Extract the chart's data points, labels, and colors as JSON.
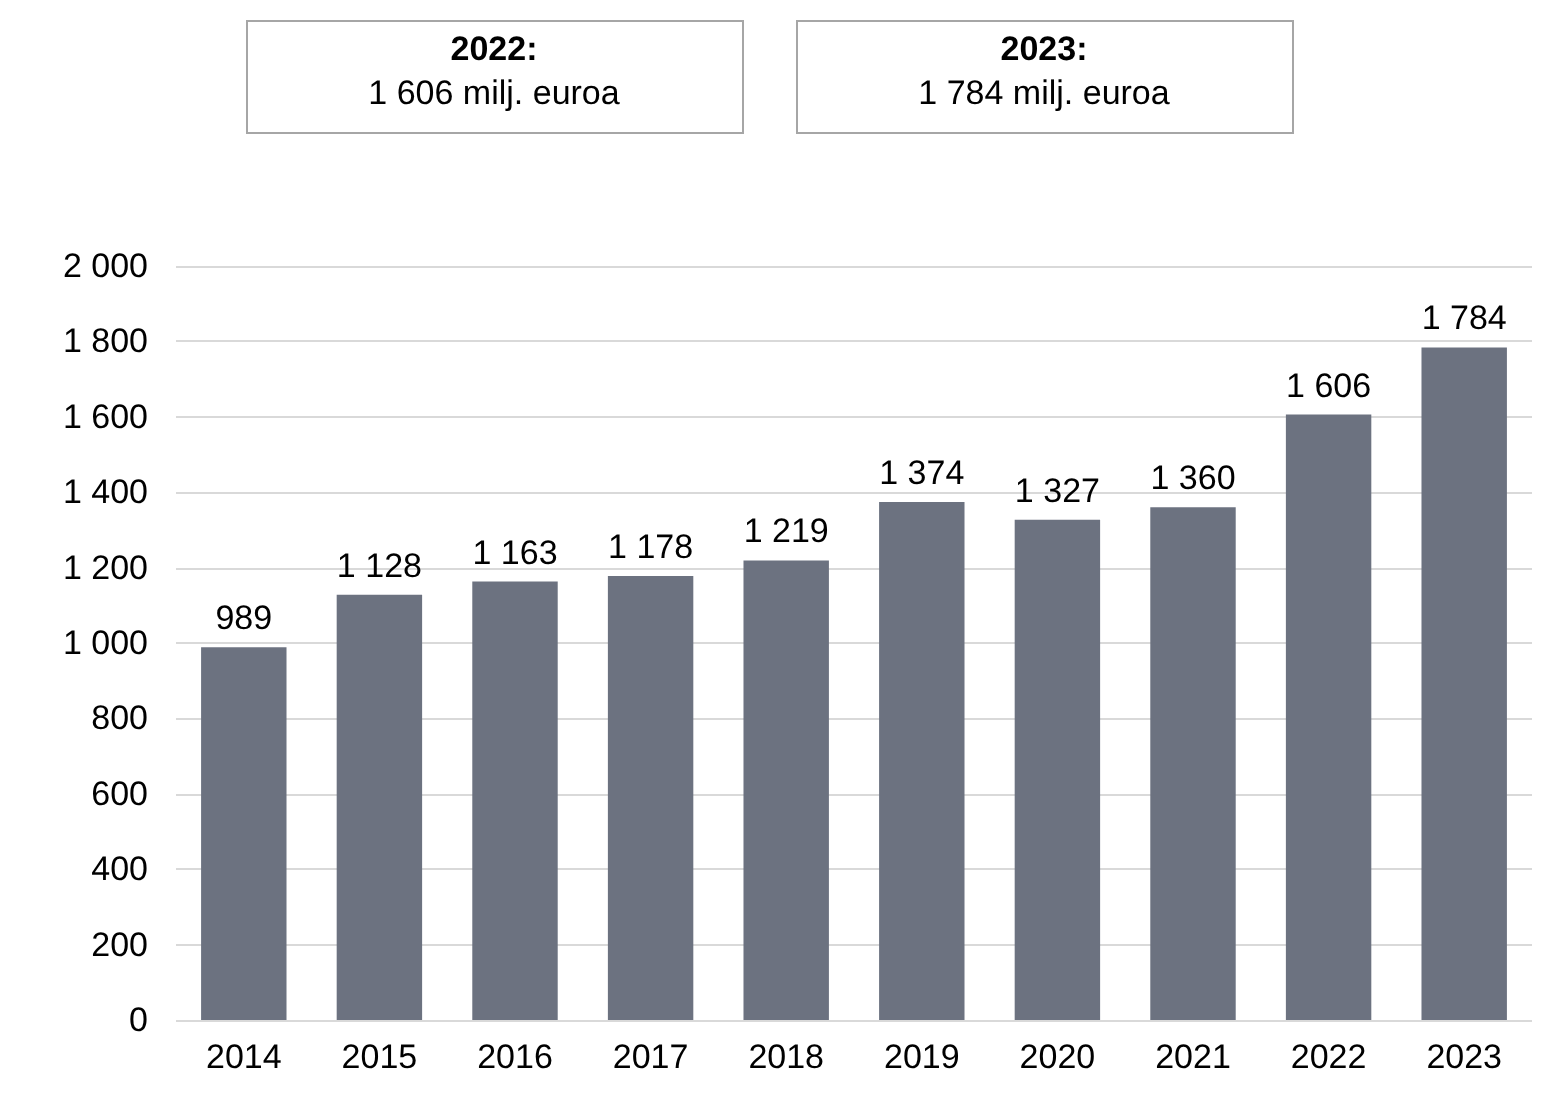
{
  "chart_data": {
    "type": "bar",
    "annotations": [
      "2022:\n1 606 milj. euroa",
      "2023:\n1 784 milj. euroa"
    ],
    "categories": [
      "2014",
      "2015",
      "2016",
      "2017",
      "2018",
      "2019",
      "2020",
      "2021",
      "2022",
      "2023"
    ],
    "values": [
      989,
      1128,
      1163,
      1178,
      1219,
      1374,
      1327,
      1360,
      1606,
      1784
    ],
    "value_labels": [
      "989",
      "1 128",
      "1 163",
      "1 178",
      "1 219",
      "1 374",
      "1 327",
      "1 360",
      "1 606",
      "1 784"
    ],
    "color": "#6c7280",
    "ylim": [
      0,
      2000
    ],
    "yticks": [
      0,
      {
        "value": 200,
        "label": "200"
      },
      {
        "value": 400,
        "label": "400"
      },
      {
        "value": 600,
        "label": "600"
      },
      {
        "value": 800,
        "label": "800"
      },
      {
        "value": 1000,
        "label": "1 000"
      },
      {
        "value": 1200,
        "label": "1 200"
      },
      {
        "value": 1400,
        "label": "1 400"
      },
      {
        "value": 1600,
        "label": "1 600"
      },
      {
        "value": 1800,
        "label": "1 800"
      },
      {
        "value": 2000,
        "label": "2 000"
      }
    ],
    "grid": "y"
  }
}
